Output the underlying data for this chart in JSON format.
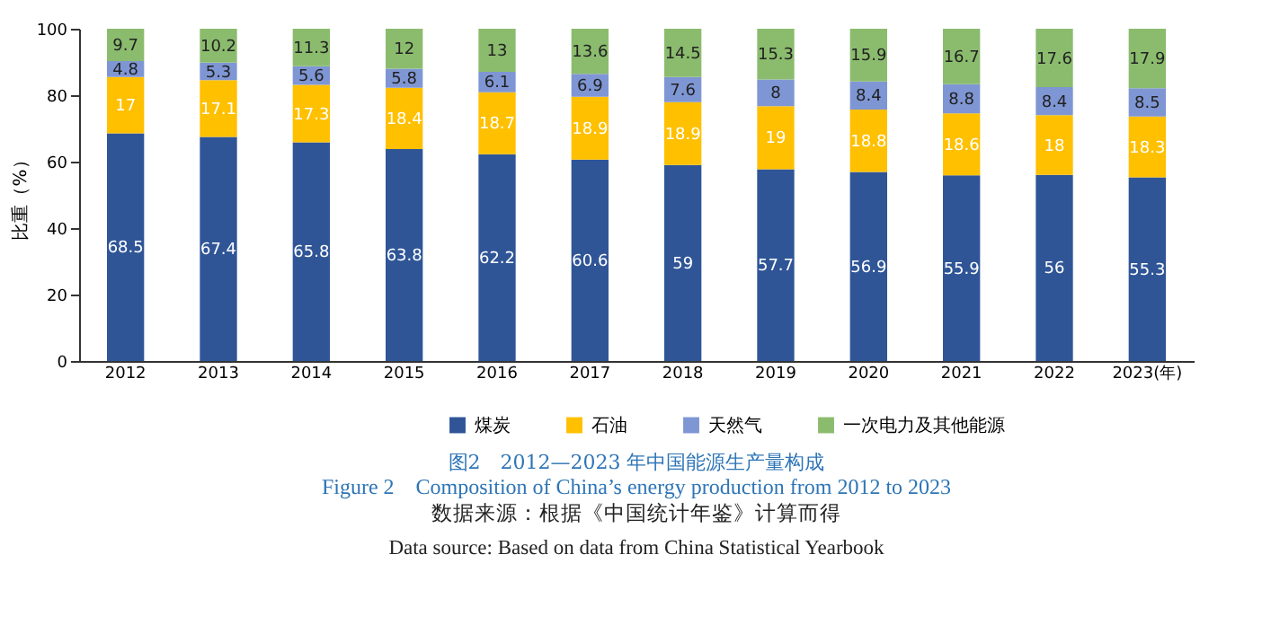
{
  "chart_data": {
    "type": "bar",
    "stacked": true,
    "title": "图2　2012—2023 年中国能源生产量构成",
    "subtitle": "Figure 2　Composition of China’s energy production from 2012 to 2023",
    "annotations": [
      "数据来源：根据《中国统计年鉴》计算而得",
      "Data source: Based on data from China Statistical Yearbook"
    ],
    "ylabel": "比重（%）",
    "categories": [
      "2012",
      "2013",
      "2014",
      "2015",
      "2016",
      "2017",
      "2018",
      "2019",
      "2020",
      "2021",
      "2022",
      "2023(年)"
    ],
    "series": [
      {
        "name": "煤炭",
        "color": "#2f5597",
        "values": [
          68.5,
          67.4,
          65.8,
          63.8,
          62.2,
          60.6,
          59,
          57.7,
          56.9,
          55.9,
          56,
          55.3
        ]
      },
      {
        "name": "石油",
        "color": "#ffc000",
        "values": [
          17,
          17.1,
          17.3,
          18.4,
          18.7,
          18.9,
          18.9,
          19,
          18.8,
          18.6,
          18,
          18.3
        ]
      },
      {
        "name": "天然气",
        "color": "#7f96d4",
        "values": [
          4.8,
          5.3,
          5.6,
          5.8,
          6.1,
          6.9,
          7.6,
          8,
          8.4,
          8.8,
          8.4,
          8.5
        ]
      },
      {
        "name": "一次电力及其他能源",
        "color": "#8bbc6e",
        "values": [
          9.7,
          10.2,
          11.3,
          12,
          13,
          13.6,
          14.5,
          15.3,
          15.9,
          16.7,
          17.6,
          17.9
        ]
      }
    ],
    "ylim": [
      0,
      100
    ],
    "yticks": [
      0,
      20,
      40,
      60,
      80,
      100
    ],
    "data_labels": true,
    "grid": false,
    "legend": "bottom"
  }
}
